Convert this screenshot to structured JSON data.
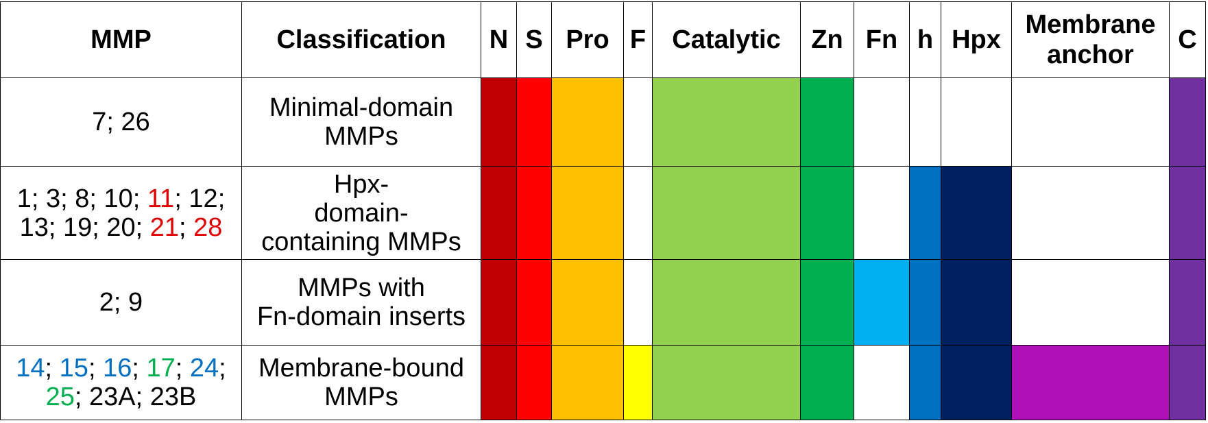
{
  "headers": {
    "mmp": "MMP",
    "classification": "Classification",
    "n": "N",
    "s": "S",
    "pro": "Pro",
    "f": "F",
    "catalytic": "Catalytic",
    "zn": "Zn",
    "fn": "Fn",
    "h": "h",
    "hpx": "Hpx",
    "membrane_anchor_line1": "Membrane",
    "membrane_anchor_line2": "anchor",
    "c": "C"
  },
  "colors": {
    "N": "#c00000",
    "S": "#ff0000",
    "Pro": "#ffc000",
    "F": "#ffff00",
    "Catalytic": "#92d050",
    "Zn": "#00b050",
    "Fn": "#00b0f0",
    "h": "#0070c0",
    "Hpx": "#002060",
    "Membrane": "#b010b8",
    "C": "#7030a0",
    "empty": "#ffffff",
    "mmp_red": "#e00000",
    "mmp_blue": "#0070c0",
    "mmp_green": "#00b050",
    "mmp_black": "#000000"
  },
  "rows": [
    {
      "mmp_lines": [
        [
          {
            "text": "7; 26",
            "color": "mmp_black"
          }
        ]
      ],
      "classification_lines": [
        "Minimal-domain",
        "MMPs"
      ],
      "domains": {
        "N": true,
        "S": true,
        "Pro": true,
        "F": false,
        "Catalytic": true,
        "Zn": true,
        "Fn": false,
        "h": false,
        "Hpx": false,
        "Membrane": false,
        "C": true
      }
    },
    {
      "mmp_lines": [
        [
          {
            "text": "1; 3; 8; 10; ",
            "color": "mmp_black"
          },
          {
            "text": "11",
            "color": "mmp_red"
          },
          {
            "text": "; 12;",
            "color": "mmp_black"
          }
        ],
        [
          {
            "text": "13; 19; 20; ",
            "color": "mmp_black"
          },
          {
            "text": "21",
            "color": "mmp_red"
          },
          {
            "text": "; ",
            "color": "mmp_black"
          },
          {
            "text": "28",
            "color": "mmp_red"
          }
        ]
      ],
      "classification_lines": [
        "Hpx-",
        "domain-",
        "containing MMPs"
      ],
      "domains": {
        "N": true,
        "S": true,
        "Pro": true,
        "F": false,
        "Catalytic": true,
        "Zn": true,
        "Fn": false,
        "h": true,
        "Hpx": true,
        "Membrane": false,
        "C": true
      }
    },
    {
      "mmp_lines": [
        [
          {
            "text": "2; 9",
            "color": "mmp_black"
          }
        ]
      ],
      "classification_lines": [
        "MMPs with",
        "Fn-domain inserts"
      ],
      "domains": {
        "N": true,
        "S": true,
        "Pro": true,
        "F": false,
        "Catalytic": true,
        "Zn": true,
        "Fn": true,
        "h": true,
        "Hpx": true,
        "Membrane": false,
        "C": true
      }
    },
    {
      "mmp_lines": [
        [
          {
            "text": "14",
            "color": "mmp_blue"
          },
          {
            "text": "; ",
            "color": "mmp_black"
          },
          {
            "text": "15",
            "color": "mmp_blue"
          },
          {
            "text": "; ",
            "color": "mmp_black"
          },
          {
            "text": "16",
            "color": "mmp_blue"
          },
          {
            "text": "; ",
            "color": "mmp_black"
          },
          {
            "text": "17",
            "color": "mmp_green"
          },
          {
            "text": "; ",
            "color": "mmp_black"
          },
          {
            "text": "24",
            "color": "mmp_blue"
          },
          {
            "text": ";",
            "color": "mmp_black"
          }
        ],
        [
          {
            "text": "25",
            "color": "mmp_green"
          },
          {
            "text": "; 23A; 23B",
            "color": "mmp_black"
          }
        ]
      ],
      "classification_lines": [
        "Membrane-bound",
        "MMPs"
      ],
      "domains": {
        "N": true,
        "S": true,
        "Pro": true,
        "F": true,
        "Catalytic": true,
        "Zn": true,
        "Fn": false,
        "h": true,
        "Hpx": true,
        "Membrane": true,
        "C": true
      }
    }
  ]
}
